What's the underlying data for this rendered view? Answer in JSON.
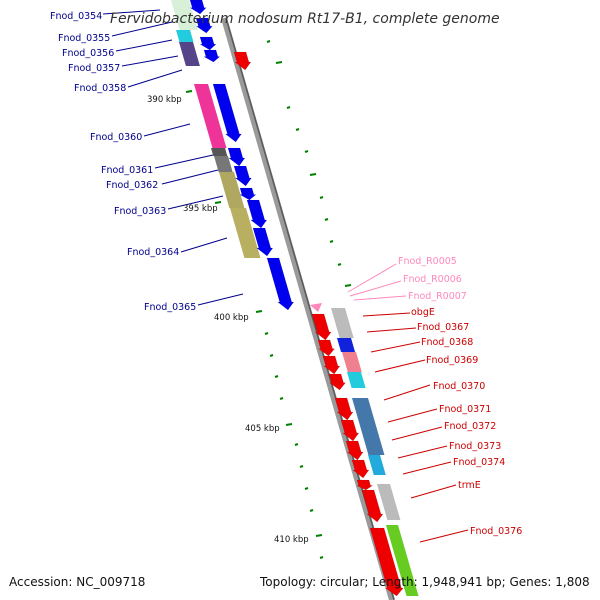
{
  "title": "Fervidobacterium nodosum Rt17-B1, complete genome",
  "footer": {
    "accession": "Accession: NC_009718",
    "summary": "Topology: circular; Length: 1,948,941 bp; Genes: 1,808"
  },
  "colors": {
    "left_label": "#00008b",
    "right_label": "#cc0000",
    "rna_label": "#ff88bb",
    "backbone": "#888888",
    "ticks": "#008000"
  },
  "scale": {
    "kbp_labels": [
      "390 kbp",
      "395 kbp",
      "400 kbp",
      "405 kbp",
      "410 kbp"
    ]
  },
  "left_genes": [
    "Fnod_0354",
    "Fnod_0355",
    "Fnod_0356",
    "Fnod_0357",
    "Fnod_0358",
    "Fnod_0360",
    "Fnod_0361",
    "Fnod_0362",
    "Fnod_0363",
    "Fnod_0364",
    "Fnod_0365"
  ],
  "rna_genes": [
    "Fnod_R0005",
    "Fnod_R0006",
    "Fnod_R0007"
  ],
  "right_genes": [
    "obgE",
    "Fnod_0367",
    "Fnod_0368",
    "Fnod_0369",
    "Fnod_0370",
    "Fnod_0371",
    "Fnod_0372",
    "Fnod_0373",
    "Fnod_0374",
    "trmE",
    "Fnod_0376"
  ]
}
